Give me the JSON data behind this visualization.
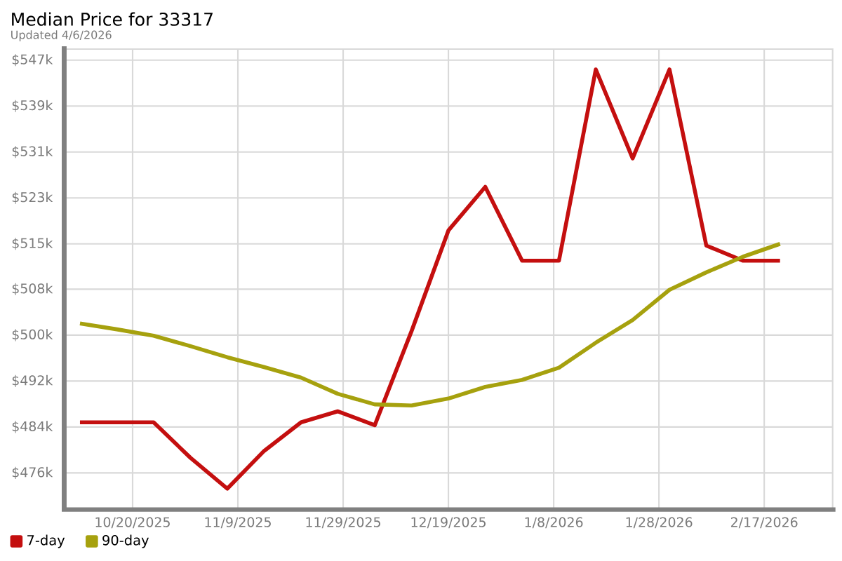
{
  "chart_data": {
    "type": "line",
    "title": "Median Price for 33317",
    "subtitle": "Updated 4/6/2026",
    "x": [
      "2025-10-10",
      "2025-10-17",
      "2025-10-24",
      "2025-10-31",
      "2025-11-07",
      "2025-11-14",
      "2025-11-21",
      "2025-11-28",
      "2025-12-05",
      "2025-12-12",
      "2025-12-19",
      "2025-12-26",
      "2026-01-02",
      "2026-01-09",
      "2026-01-16",
      "2026-01-23",
      "2026-01-30",
      "2026-02-06",
      "2026-02-13",
      "2026-02-20"
    ],
    "series": [
      {
        "name": "7-day",
        "color": "#c40f0f",
        "values": [
          484.7,
          484.7,
          484.7,
          478.6,
          473.3,
          479.8,
          484.7,
          486.6,
          484.2,
          500.4,
          517.7,
          525.2,
          512.5,
          512.5,
          545.4,
          530.1,
          545.4,
          515.1,
          512.5,
          512.5
        ]
      },
      {
        "name": "90-day",
        "color": "#a6a10e",
        "values": [
          501.7,
          500.7,
          499.6,
          497.8,
          495.9,
          494.2,
          492.4,
          489.6,
          487.8,
          487.6,
          488.8,
          490.8,
          492.0,
          494.1,
          498.4,
          502.3,
          507.5,
          510.5,
          513.2,
          515.4
        ]
      }
    ],
    "xlim": [
      "2025-10-07",
      "2026-03-02"
    ],
    "xticks": [
      {
        "value": "2025-10-20",
        "label": "10/20/2025"
      },
      {
        "value": "2025-11-09",
        "label": "11/9/2025"
      },
      {
        "value": "2025-11-29",
        "label": "11/29/2025"
      },
      {
        "value": "2025-12-19",
        "label": "12/19/2025"
      },
      {
        "value": "2026-01-08",
        "label": "1/8/2026"
      },
      {
        "value": "2026-01-28",
        "label": "1/28/2026"
      },
      {
        "value": "2026-02-17",
        "label": "2/17/2026"
      }
    ],
    "ylim": [
      469.7,
      548.9
    ],
    "yticks": [
      {
        "value": 476,
        "label": "$476k"
      },
      {
        "value": 483.9,
        "label": "$484k"
      },
      {
        "value": 491.8,
        "label": "$492k"
      },
      {
        "value": 499.7,
        "label": "$500k"
      },
      {
        "value": 507.6,
        "label": "$508k"
      },
      {
        "value": 515.4,
        "label": "$515k"
      },
      {
        "value": 523.3,
        "label": "$523k"
      },
      {
        "value": 531.2,
        "label": "$531k"
      },
      {
        "value": 539.1,
        "label": "$539k"
      },
      {
        "value": 547,
        "label": "$547k"
      }
    ],
    "grid": true,
    "legend": "bottom left",
    "marker": "none",
    "line_style": "solid"
  }
}
